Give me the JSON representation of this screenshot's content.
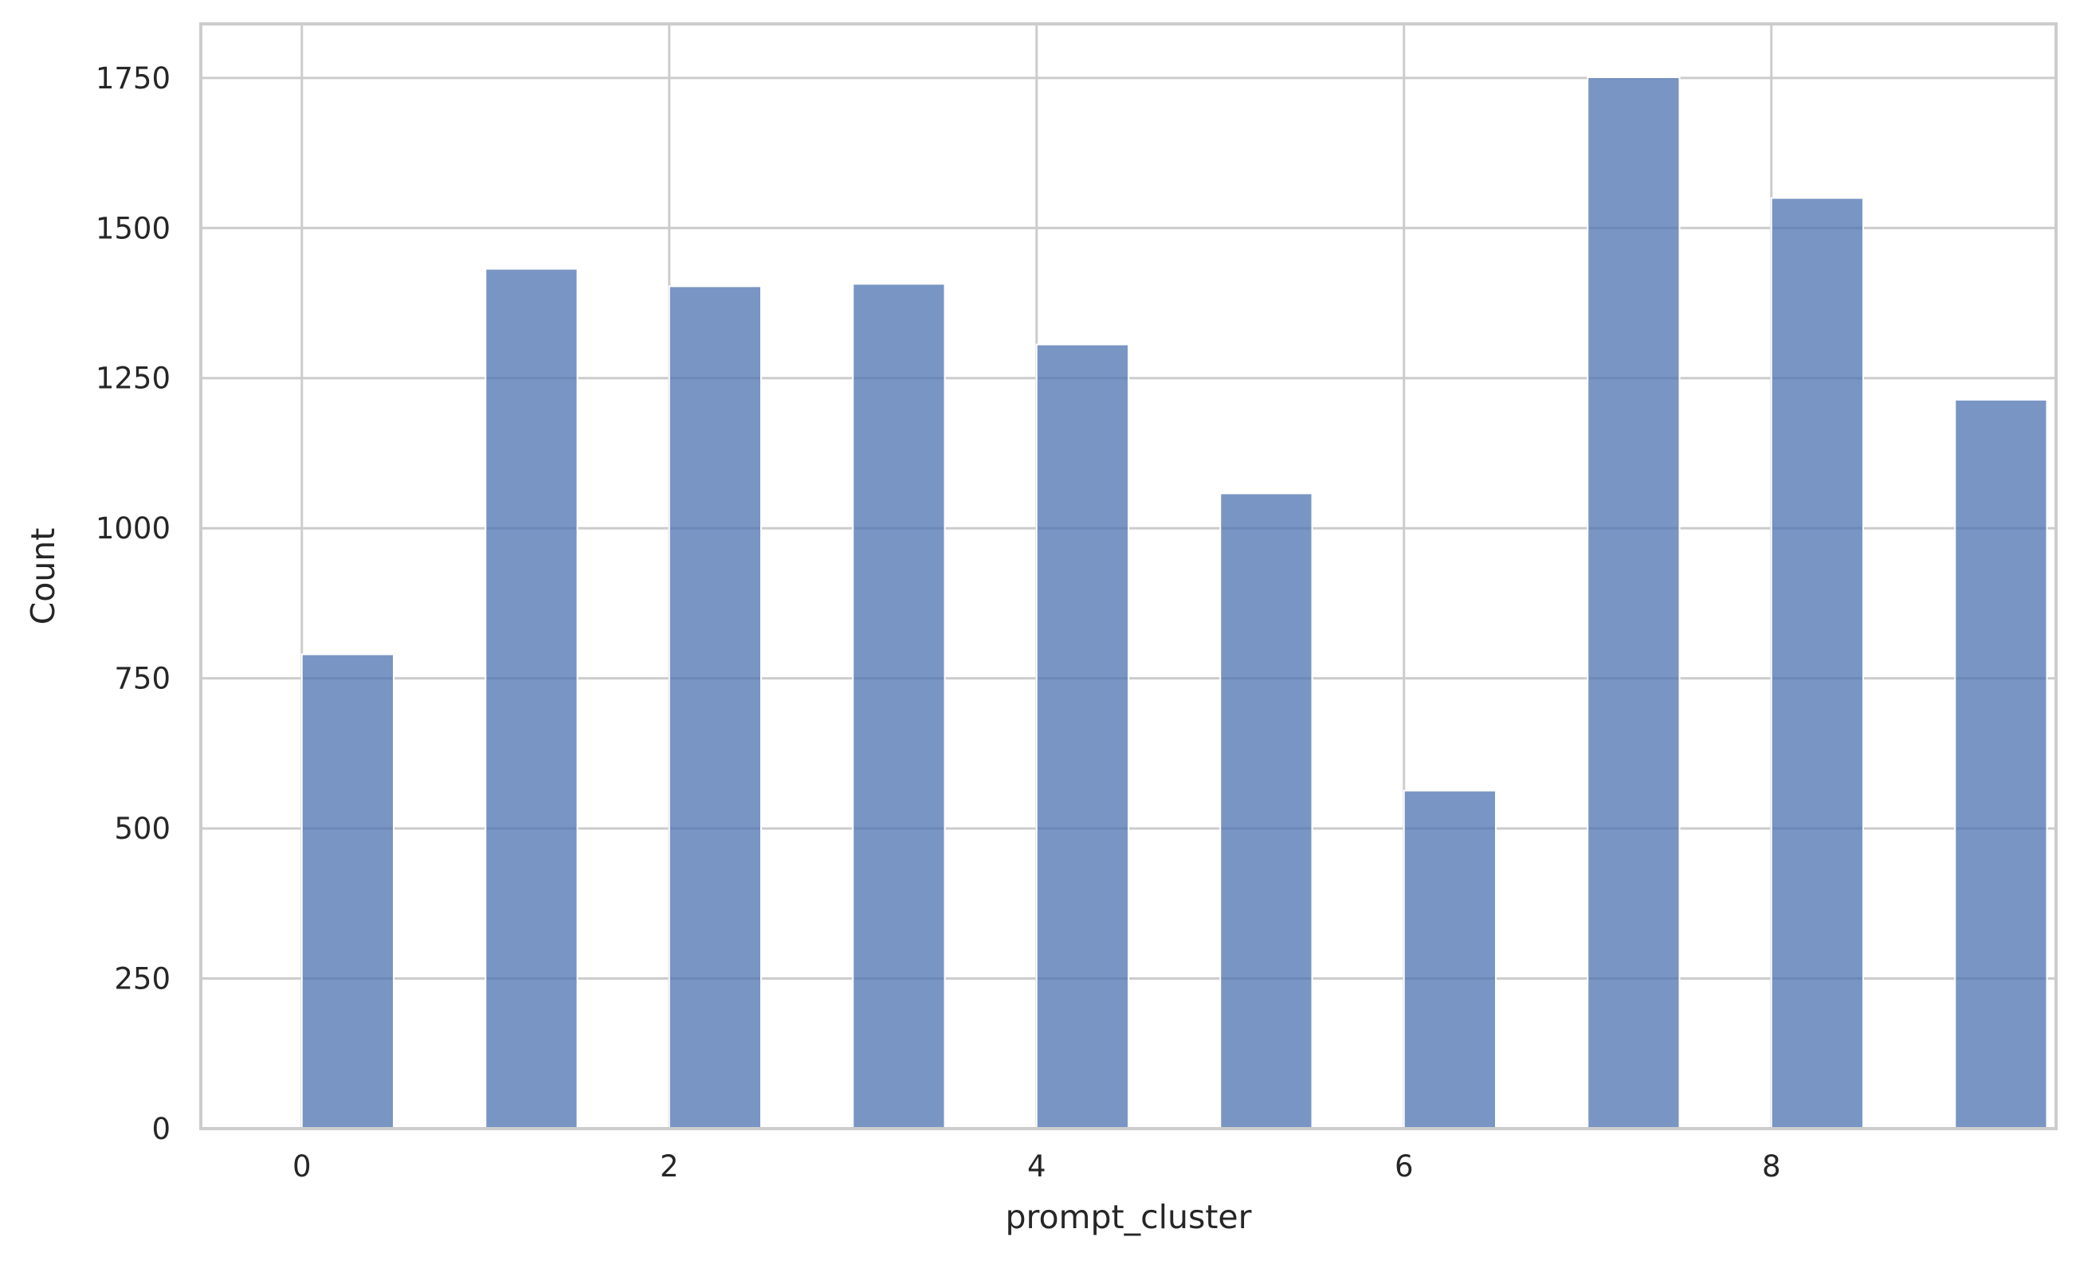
{
  "chart_data": {
    "type": "bar",
    "title": "",
    "xlabel": "prompt_cluster",
    "ylabel": "Count",
    "xlim": [
      -0.55,
      9.55
    ],
    "ylim": [
      0,
      1840
    ],
    "x_ticks": [
      0,
      2,
      4,
      6,
      8
    ],
    "y_ticks": [
      0,
      250,
      500,
      750,
      1000,
      1250,
      1500,
      1750
    ],
    "bin_width": 0.5,
    "bins": [
      {
        "start": 0.0,
        "end": 0.5,
        "value": 790
      },
      {
        "start": 1.0,
        "end": 1.5,
        "value": 1432
      },
      {
        "start": 2.0,
        "end": 2.5,
        "value": 1403
      },
      {
        "start": 3.0,
        "end": 3.5,
        "value": 1407
      },
      {
        "start": 4.0,
        "end": 4.5,
        "value": 1306
      },
      {
        "start": 5.0,
        "end": 5.5,
        "value": 1058
      },
      {
        "start": 6.0,
        "end": 6.5,
        "value": 563
      },
      {
        "start": 7.0,
        "end": 7.5,
        "value": 1751
      },
      {
        "start": 8.0,
        "end": 8.5,
        "value": 1550
      },
      {
        "start": 9.0,
        "end": 9.5,
        "value": 1214
      }
    ],
    "grid": true,
    "legend": "none",
    "colors": {
      "bar": "#4c72b0",
      "bar_opacity": 0.75,
      "grid": "#cccccc",
      "frame": "#cccccc",
      "text": "#262626",
      "background": "#ffffff"
    }
  }
}
